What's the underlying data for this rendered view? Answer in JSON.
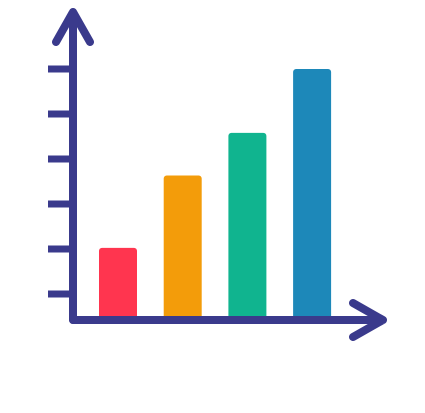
{
  "chart_data": {
    "type": "bar",
    "categories": [
      "",
      "",
      "",
      ""
    ],
    "values": [
      1.6,
      3.3,
      4.3,
      5.8
    ],
    "ylim": [
      0,
      6.2
    ],
    "grid": false,
    "legend": "none"
  },
  "colors": {
    "axis": "#3a3a8c",
    "bars": [
      "#ff354f",
      "#f39c0a",
      "#10b48f",
      "#1d88b9"
    ],
    "background": "#ffffff"
  }
}
